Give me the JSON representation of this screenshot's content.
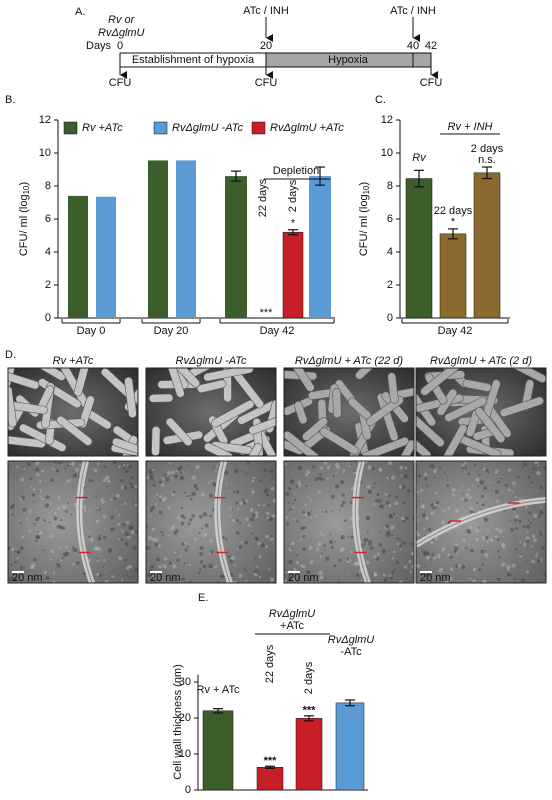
{
  "panel_labels": [
    "A.",
    "B.",
    "C.",
    "D.",
    "E."
  ],
  "timeline": {
    "strain": [
      "Rv or",
      "RvΔglmU"
    ],
    "days_label": "Days",
    "days": [
      "0",
      "20",
      "40",
      "42"
    ],
    "treatments": [
      "ATc / INH",
      "ATc / INH"
    ],
    "phases": [
      "Establishment of hypoxia",
      "Hypoxia"
    ],
    "readouts": [
      "CFU",
      "CFU",
      "CFU"
    ]
  },
  "chart_data": [
    {
      "type": "bar",
      "ylabel": [
        "CFU/ ml (log",
        "10",
        ")"
      ],
      "ylim": [
        0,
        12
      ],
      "yticks": [
        0,
        2,
        4,
        6,
        8,
        10,
        12
      ],
      "categories": [
        "Day 0",
        "Day 20",
        "Day 42"
      ],
      "series": [
        {
          "name": "Rv +ATc",
          "color": "#3b5e2b",
          "values": [
            7.4,
            9.55,
            8.6
          ],
          "errors": [
            null,
            null,
            0.3
          ]
        },
        {
          "name": "RvΔglmU -ATc",
          "color": "#5b9bd5",
          "values": [
            7.35,
            9.55,
            8.6
          ],
          "errors": [
            null,
            null,
            0.55
          ]
        },
        {
          "name": "RvΔglmU +ATc",
          "color": "#c81e28",
          "bars": [
            {
              "label": "22 days",
              "value": null,
              "annotation": "***"
            },
            {
              "label": "2 days",
              "value": 5.2,
              "error": 0.15,
              "annotation": "*"
            }
          ]
        }
      ],
      "annotation": "Depletion"
    },
    {
      "type": "bar",
      "ylabel": [
        "CFU/ ml (log",
        "10",
        ")"
      ],
      "ylim": [
        0,
        12
      ],
      "yticks": [
        0,
        2,
        4,
        6,
        8,
        10,
        12
      ],
      "xlabel": "Day 42",
      "group_label": "Rv + INH",
      "categories": [
        "Rv",
        "22 days",
        "2 days"
      ],
      "values": [
        8.45,
        5.1,
        8.8
      ],
      "errors": [
        0.5,
        0.3,
        0.35
      ],
      "colors": [
        "#3b5e2b",
        "#8c6a2f",
        "#8c6a2f"
      ],
      "annotations": [
        null,
        "*",
        "n.s."
      ]
    },
    {
      "type": "bar",
      "ylabel": "Cell wall thickness (nm)",
      "ylim": [
        0,
        32
      ],
      "yticks": [
        0,
        10,
        20,
        30
      ],
      "group_label": [
        "RvΔglmU",
        "+ATc"
      ],
      "categories": [
        [
          "Rv + ATc"
        ],
        [
          "22 days"
        ],
        [
          "2 days"
        ],
        [
          "RvΔglmU",
          "-ATc"
        ]
      ],
      "values": [
        22,
        6.3,
        19.9,
        24.2
      ],
      "errors": [
        0.6,
        0.3,
        0.7,
        0.8
      ],
      "colors": [
        "#3b5e2b",
        "#c81e28",
        "#c81e28",
        "#5b9bd5"
      ],
      "annotations": [
        null,
        "***",
        "***",
        null
      ]
    }
  ],
  "micrographs": {
    "titles": [
      "Rv +ATc",
      "RvΔglmU -ATc",
      "RvΔglmU + ATc (22 d)",
      "RvΔglmU + ATc (2 d)"
    ],
    "scale_bars": [
      "20 nm",
      "20 nm",
      "20 nm",
      "20 nm"
    ]
  }
}
